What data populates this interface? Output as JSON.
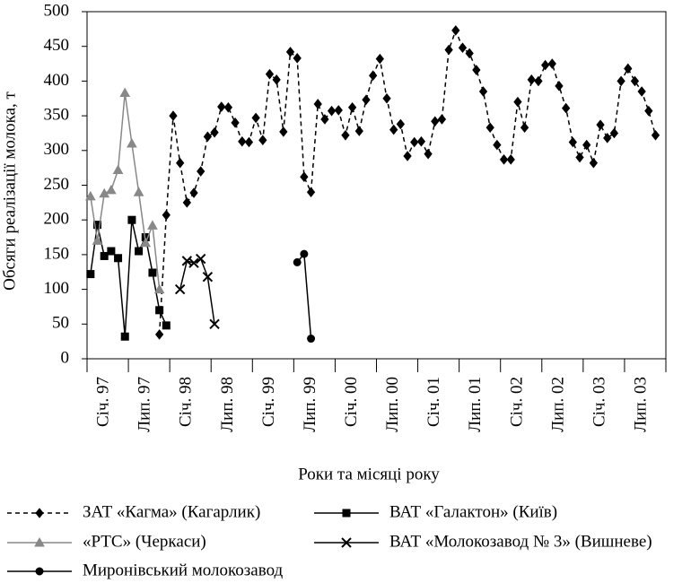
{
  "chart_data": {
    "type": "line",
    "y_label": "Обсяги реалізації молока, т",
    "x_label": "Роки та місяці року",
    "categories": [
      null,
      null,
      "Січ. 97",
      null,
      null,
      null,
      null,
      null,
      "Лип. 97",
      null,
      null,
      null,
      null,
      null,
      "Січ. 98",
      null,
      null,
      null,
      null,
      null,
      "Лип. 98",
      null,
      null,
      null,
      null,
      null,
      "Січ. 99",
      null,
      null,
      null,
      null,
      null,
      "Лип. 99",
      null,
      null,
      null,
      null,
      null,
      "Січ. 00",
      null,
      null,
      null,
      null,
      null,
      "Лип. 00",
      null,
      null,
      null,
      null,
      null,
      "Січ. 01",
      null,
      null,
      null,
      null,
      null,
      "Лип. 01",
      null,
      null,
      null,
      null,
      null,
      "Січ. 02",
      null,
      null,
      null,
      null,
      null,
      "Лип. 02",
      null,
      null,
      null,
      null,
      null,
      "Січ. 03",
      null,
      null,
      null,
      null,
      null,
      "Лип. 03",
      null,
      null,
      null
    ],
    "ylim": [
      0,
      500
    ],
    "yticks": [
      0,
      50,
      100,
      150,
      200,
      250,
      300,
      350,
      400,
      450,
      500
    ],
    "series": [
      {
        "name": "ЗАТ «Кагма» (Кагарлик)",
        "color": "#000000",
        "marker": "diamond",
        "dash": true,
        "values": [
          null,
          null,
          null,
          null,
          null,
          null,
          null,
          null,
          null,
          null,
          35,
          207,
          350,
          282,
          225,
          239,
          270,
          320,
          326,
          363,
          362,
          340,
          313,
          312,
          347,
          315,
          410,
          402,
          327,
          442,
          433,
          262,
          240,
          367,
          345,
          357,
          358,
          322,
          362,
          328,
          373,
          408,
          432,
          375,
          330,
          338,
          292,
          312,
          313,
          295,
          342,
          345,
          445,
          473,
          448,
          440,
          416,
          385,
          333,
          308,
          287,
          287,
          370,
          333,
          402,
          400,
          423,
          425,
          393,
          361,
          312,
          290,
          308,
          282,
          337,
          318,
          325,
          400,
          418,
          400,
          385,
          357,
          322,
          null
        ]
      },
      {
        "name": "ВАТ «Галактон» (Київ)",
        "color": "#000000",
        "marker": "square",
        "dash": false,
        "values": [
          122,
          193,
          148,
          155,
          145,
          32,
          200,
          155,
          175,
          124,
          70,
          48,
          null,
          null,
          null,
          null,
          null,
          null,
          null,
          null,
          null,
          null,
          null,
          null,
          null,
          null,
          null,
          null,
          null,
          null,
          null,
          null,
          null,
          null,
          null,
          null,
          null,
          null,
          null,
          null,
          null,
          null,
          null,
          null,
          null,
          null,
          null,
          null,
          null,
          null,
          null,
          null,
          null,
          null,
          null,
          null,
          null,
          null,
          null,
          null,
          null,
          null,
          null,
          null,
          null,
          null,
          null,
          null,
          null,
          null,
          null,
          null,
          null,
          null,
          null,
          null,
          null,
          null,
          null,
          null,
          null,
          null,
          null,
          null
        ]
      },
      {
        "name": "«РТС» (Черкаси)",
        "color": "#888888",
        "marker": "triangle",
        "dash": false,
        "values": [
          234,
          170,
          238,
          243,
          272,
          383,
          310,
          240,
          167,
          192,
          100,
          null,
          null,
          null,
          null,
          null,
          null,
          null,
          null,
          null,
          null,
          null,
          null,
          null,
          null,
          null,
          null,
          null,
          null,
          null,
          null,
          null,
          null,
          null,
          null,
          null,
          null,
          null,
          null,
          null,
          null,
          null,
          null,
          null,
          null,
          null,
          null,
          null,
          null,
          null,
          null,
          null,
          null,
          null,
          null,
          null,
          null,
          null,
          null,
          null,
          null,
          null,
          null,
          null,
          null,
          null,
          null,
          null,
          null,
          null,
          null,
          null,
          null,
          null,
          null,
          null,
          null,
          null,
          null,
          null,
          null,
          null,
          null,
          null
        ]
      },
      {
        "name": "ВАТ «Молокозавод № 3» (Вишневе)",
        "color": "#000000",
        "marker": "x",
        "dash": false,
        "values": [
          null,
          null,
          null,
          null,
          null,
          null,
          null,
          null,
          null,
          null,
          null,
          null,
          null,
          100,
          141,
          138,
          144,
          118,
          50,
          null,
          null,
          null,
          null,
          null,
          null,
          null,
          null,
          null,
          null,
          null,
          null,
          null,
          null,
          null,
          null,
          null,
          null,
          null,
          null,
          null,
          null,
          null,
          null,
          null,
          null,
          null,
          null,
          null,
          null,
          null,
          null,
          null,
          null,
          null,
          null,
          null,
          null,
          null,
          null,
          null,
          null,
          null,
          null,
          null,
          null,
          null,
          null,
          null,
          null,
          null,
          null,
          null,
          null,
          null,
          null,
          null,
          null,
          null,
          null,
          null,
          null,
          null,
          null,
          null
        ]
      },
      {
        "name": "Миронівський молокозавод",
        "color": "#000000",
        "marker": "circle",
        "dash": false,
        "values": [
          null,
          null,
          null,
          null,
          null,
          null,
          null,
          null,
          null,
          null,
          null,
          null,
          null,
          null,
          null,
          null,
          null,
          null,
          null,
          null,
          null,
          null,
          null,
          null,
          null,
          null,
          null,
          null,
          null,
          null,
          139,
          151,
          29,
          null,
          null,
          null,
          null,
          null,
          null,
          null,
          null,
          null,
          null,
          null,
          null,
          null,
          null,
          null,
          null,
          null,
          null,
          null,
          null,
          null,
          null,
          null,
          null,
          null,
          null,
          null,
          null,
          null,
          null,
          null,
          null,
          null,
          null,
          null,
          null,
          null,
          null,
          null,
          null,
          null,
          null,
          null,
          null,
          null,
          null,
          null,
          null,
          null,
          null,
          null
        ]
      }
    ]
  }
}
